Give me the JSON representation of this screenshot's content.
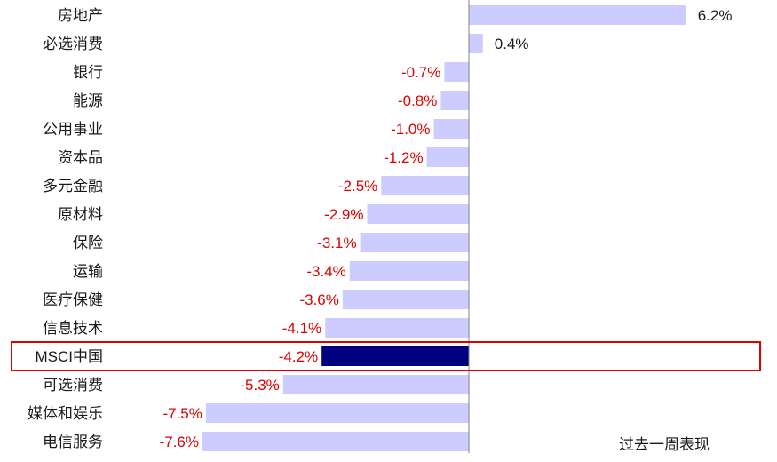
{
  "chart_data": {
    "type": "bar",
    "orientation": "horizontal",
    "categories": [
      "房地产",
      "必选消费",
      "银行",
      "能源",
      "公用事业",
      "资本品",
      "多元金融",
      "原材料",
      "保险",
      "运输",
      "医疗保健",
      "信息技术",
      "MSCI中国",
      "可选消费",
      "媒体和娱乐",
      "电信服务"
    ],
    "values": [
      6.2,
      0.4,
      -0.7,
      -0.8,
      -1.0,
      -1.2,
      -2.5,
      -2.9,
      -3.1,
      -3.4,
      -3.6,
      -4.1,
      -4.2,
      -5.3,
      -7.5,
      -7.6
    ],
    "value_labels": [
      "6.2%",
      "0.4%",
      "-0.7%",
      "-0.8%",
      "-1.0%",
      "-1.2%",
      "-2.5%",
      "-2.9%",
      "-3.1%",
      "-3.4%",
      "-3.6%",
      "-4.1%",
      "-4.2%",
      "-5.3%",
      "-7.5%",
      "-7.6%"
    ],
    "highlight_category": "MSCI中国",
    "legend_text": "过去一周表现",
    "unit": "%",
    "xlim": [
      -7.6,
      6.2
    ],
    "colors": {
      "bar": "#ccccff",
      "highlight_bar": "#000080",
      "negative_label": "#e00000",
      "positive_label": "#1a1a1a",
      "highlight_box": "#e00000",
      "axis": "#808080"
    }
  }
}
